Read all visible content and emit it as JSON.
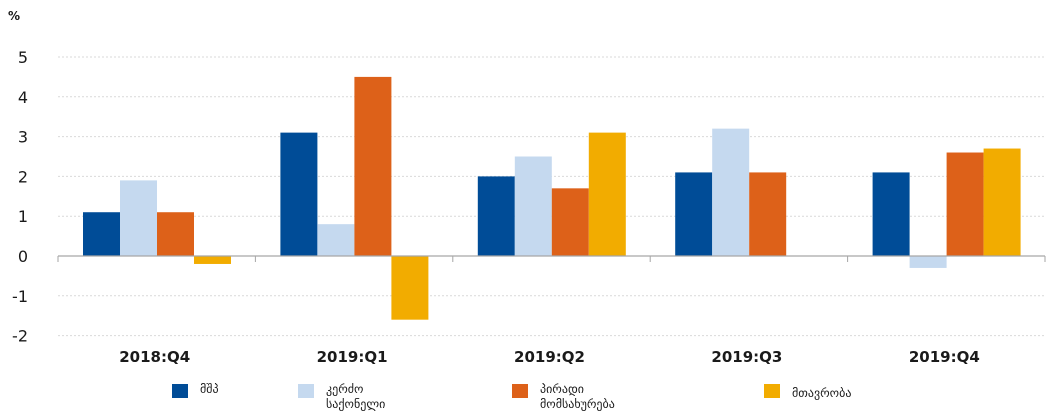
{
  "chart_data": {
    "type": "bar",
    "ylabel": "%",
    "ylim": [
      -2,
      5
    ],
    "yticks": [
      5,
      4,
      3,
      2,
      1,
      0,
      -1,
      -2
    ],
    "categories": [
      "2018:Q4",
      "2019:Q1",
      "2019:Q2",
      "2019:Q3",
      "2019:Q4"
    ],
    "series": [
      {
        "name": "მშპ",
        "color": "#004c97",
        "values": [
          1.1,
          3.1,
          2.0,
          2.1,
          2.1
        ]
      },
      {
        "name": "კერძო\nსაქონელი",
        "color": "#c5d9ef",
        "values": [
          1.9,
          0.8,
          2.5,
          3.2,
          -0.3
        ]
      },
      {
        "name": "პირადი\nმომსახურება",
        "color": "#dd6119",
        "values": [
          1.1,
          4.5,
          1.7,
          2.1,
          2.6
        ]
      },
      {
        "name": "მთავრობა",
        "color": "#f2ac00",
        "values": [
          -0.2,
          -1.6,
          3.1,
          0,
          2.7
        ]
      }
    ],
    "grid": "horizontal",
    "legend_position": "bottom"
  }
}
